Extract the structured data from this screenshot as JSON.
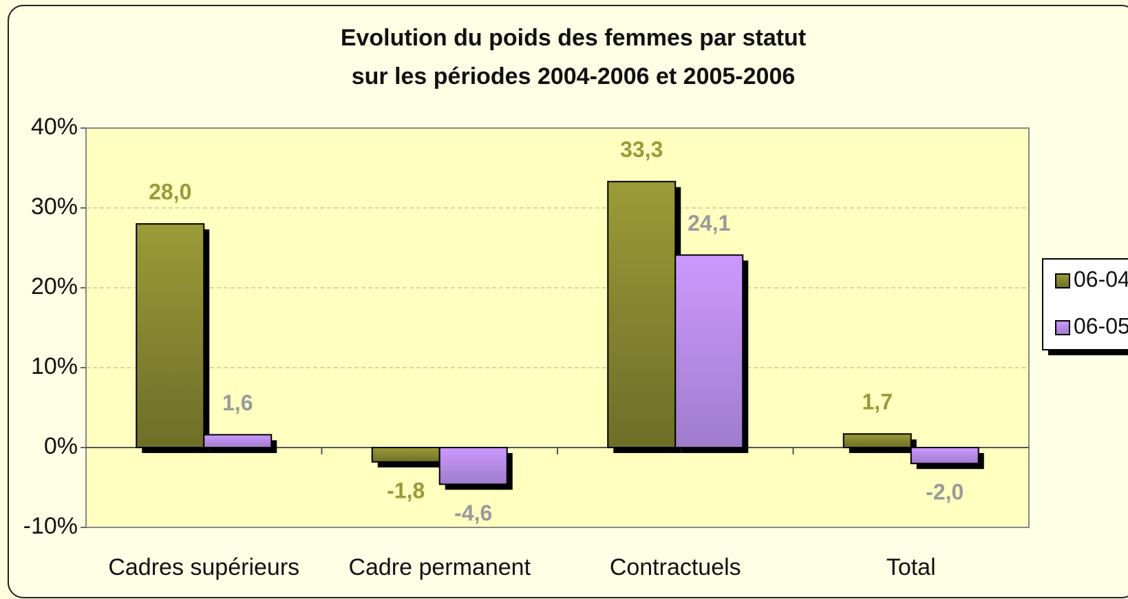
{
  "chart_data": {
    "type": "bar",
    "title": [
      "Evolution du poids des femmes par statut",
      "sur les périodes 2004-2006 et 2005-2006"
    ],
    "categories": [
      "Cadres supérieurs",
      "Cadre permanent",
      "Contractuels",
      "Total"
    ],
    "series": [
      {
        "name": "06-04",
        "color": "#8c8c32",
        "label_color": "#9a9a3a",
        "values": [
          28.0,
          -1.8,
          33.3,
          1.7
        ],
        "value_labels": [
          "28,0",
          "-1,8",
          "33,3",
          "1,7"
        ]
      },
      {
        "name": "06-05",
        "color": "#b98ef0",
        "label_color": "#9a9a9a",
        "values": [
          1.6,
          -4.6,
          24.1,
          -2.0
        ],
        "value_labels": [
          "1,6",
          "-4,6",
          "24,1",
          "-2,0"
        ]
      }
    ],
    "ylim": [
      -10,
      40
    ],
    "yticks": [
      {
        "value": -10,
        "label": "-10%"
      },
      {
        "value": 0,
        "label": "0%"
      },
      {
        "value": 10,
        "label": "10%"
      },
      {
        "value": 20,
        "label": "20%"
      },
      {
        "value": 30,
        "label": "30%"
      },
      {
        "value": 40,
        "label": "40%"
      }
    ],
    "grid": true,
    "legend": "right"
  }
}
